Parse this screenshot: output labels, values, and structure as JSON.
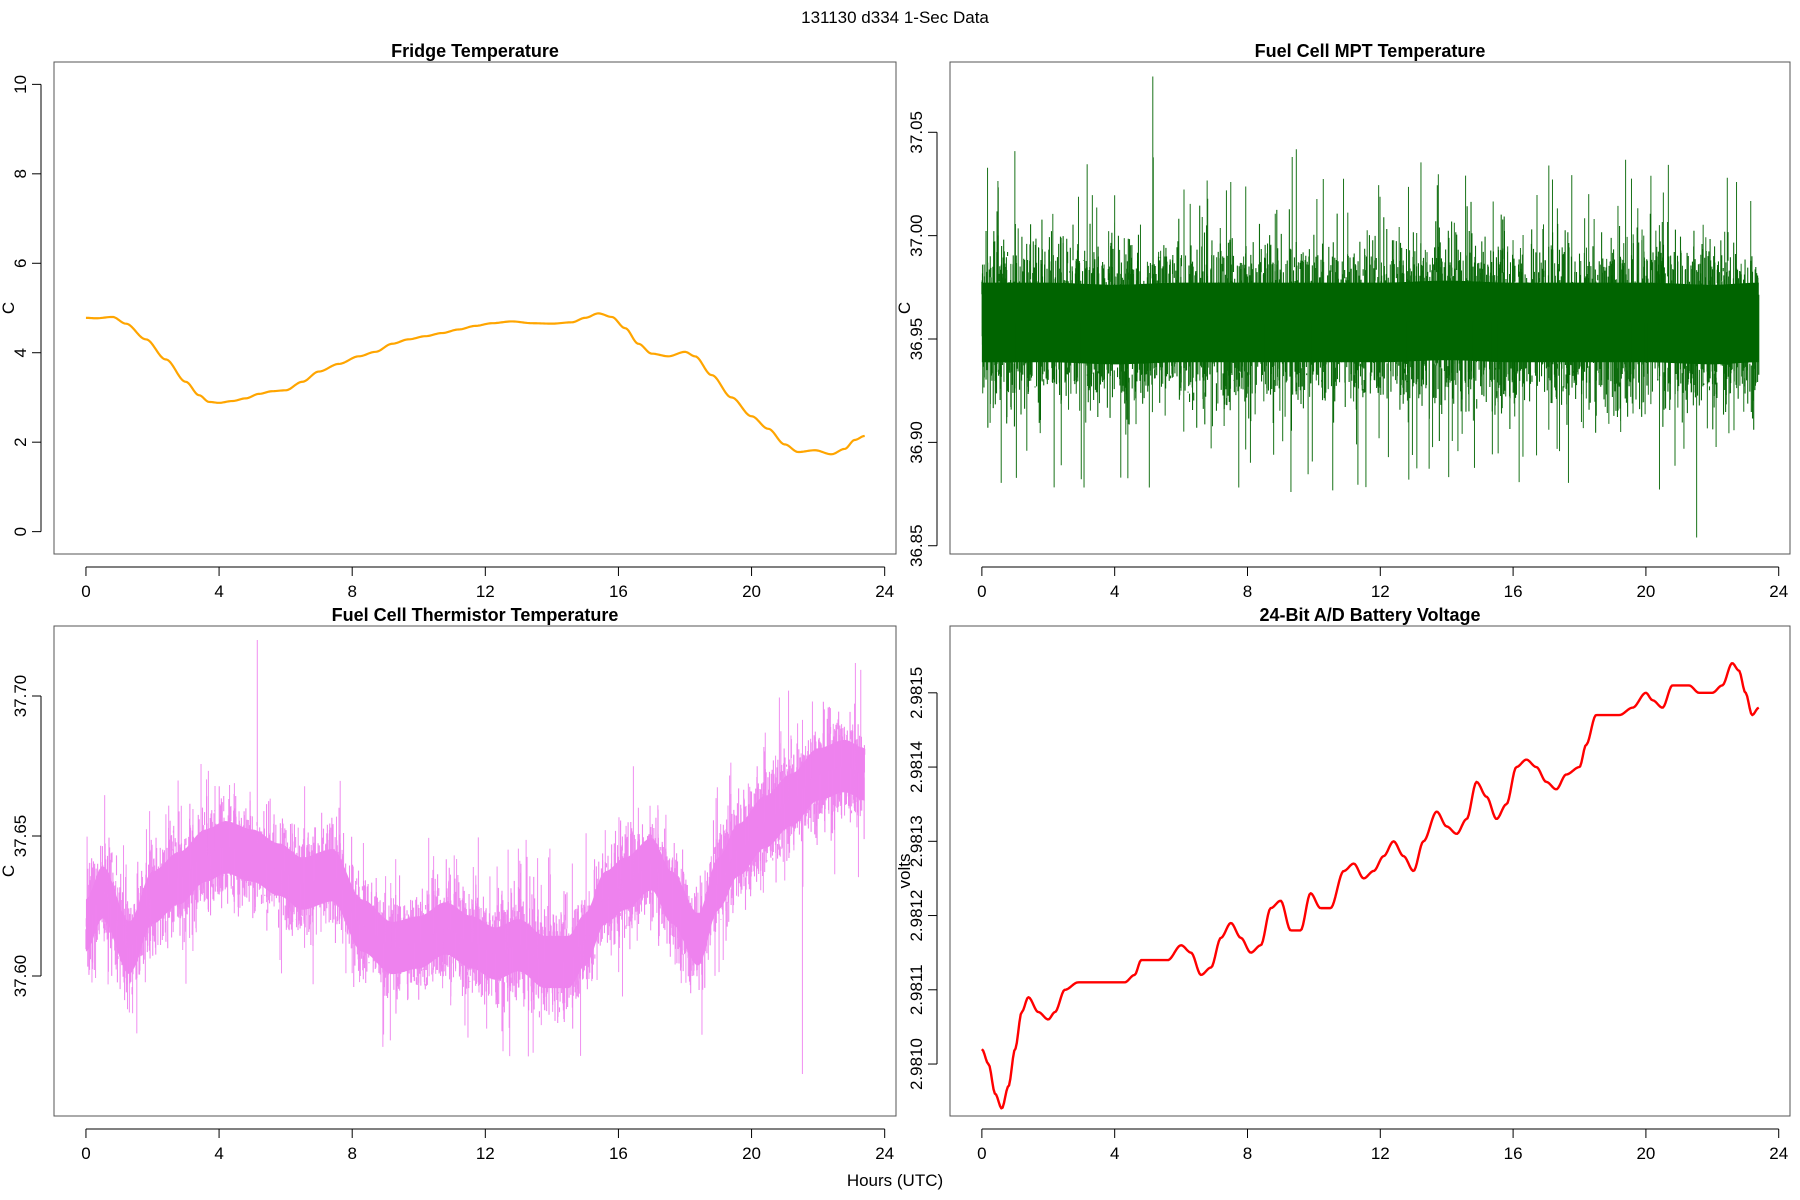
{
  "page_title": "131130   d334   1-Sec Data",
  "shared_xlabel": "Hours (UTC)",
  "chart_data": [
    {
      "id": "fridge",
      "type": "line",
      "title": "Fridge Temperature",
      "xlabel": "",
      "ylabel": "C",
      "xlim": [
        -0.96,
        24.34
      ],
      "ylim": [
        -0.5,
        10.5
      ],
      "xticks": [
        0,
        4,
        8,
        12,
        16,
        20,
        24
      ],
      "xtick_labels": [
        "0",
        "4",
        "8",
        "12",
        "16",
        "20",
        "24"
      ],
      "yticks": [
        0,
        2,
        4,
        6,
        8,
        10
      ],
      "ytick_labels": [
        "0",
        "2",
        "4",
        "6",
        "8",
        "10"
      ],
      "color": "#FFA500",
      "style": "smooth-line",
      "x": [
        0,
        0.3,
        0.8,
        1.2,
        1.8,
        2.4,
        3.0,
        3.4,
        3.7,
        4.0,
        4.4,
        4.8,
        5.2,
        5.6,
        6.0,
        6.5,
        7.0,
        7.6,
        8.2,
        8.7,
        9.2,
        9.7,
        10.2,
        10.7,
        11.2,
        11.7,
        12.2,
        12.8,
        13.4,
        14.0,
        14.6,
        15.0,
        15.4,
        15.8,
        16.2,
        16.6,
        17.0,
        17.5,
        18.0,
        18.3,
        18.8,
        19.4,
        20.0,
        20.5,
        21.0,
        21.4,
        21.9,
        22.4,
        22.8,
        23.1,
        23.4
      ],
      "y": [
        4.78,
        4.77,
        4.8,
        4.65,
        4.3,
        3.85,
        3.35,
        3.05,
        2.9,
        2.88,
        2.92,
        2.98,
        3.08,
        3.14,
        3.16,
        3.35,
        3.58,
        3.75,
        3.92,
        4.02,
        4.2,
        4.3,
        4.37,
        4.44,
        4.52,
        4.6,
        4.66,
        4.7,
        4.66,
        4.65,
        4.68,
        4.78,
        4.88,
        4.8,
        4.55,
        4.2,
        3.98,
        3.92,
        4.02,
        3.92,
        3.5,
        3.0,
        2.58,
        2.3,
        1.95,
        1.78,
        1.82,
        1.73,
        1.85,
        2.05,
        2.14
      ]
    },
    {
      "id": "mpt",
      "type": "line",
      "title": "Fuel Cell MPT Temperature",
      "xlabel": "",
      "ylabel": "C",
      "xlim": [
        -0.96,
        24.34
      ],
      "ylim": [
        36.846,
        37.084
      ],
      "xticks": [
        0,
        4,
        8,
        12,
        16,
        20,
        24
      ],
      "xtick_labels": [
        "0",
        "4",
        "8",
        "12",
        "16",
        "20",
        "24"
      ],
      "yticks": [
        36.85,
        36.9,
        36.95,
        37.0,
        37.05
      ],
      "ytick_labels": [
        "36.85",
        "36.90",
        "36.95",
        "37.00",
        "37.05"
      ],
      "color": "#006400",
      "style": "noisy",
      "x": [
        0,
        2,
        4,
        6,
        8,
        10,
        12,
        14,
        16,
        18,
        20,
        22,
        23.4
      ],
      "y": [
        36.958,
        36.958,
        36.957,
        36.958,
        36.958,
        36.958,
        36.958,
        36.959,
        36.958,
        36.958,
        36.958,
        36.957,
        36.958
      ],
      "noise_band": 0.035,
      "spike_max": 37.077,
      "spike_min": 36.854
    },
    {
      "id": "thermistor",
      "type": "line",
      "title": "Fuel Cell Thermistor Temperature",
      "xlabel": "",
      "ylabel": "C",
      "xlim": [
        -0.96,
        24.34
      ],
      "ylim": [
        37.55,
        37.725
      ],
      "xticks": [
        0,
        4,
        8,
        12,
        16,
        20,
        24
      ],
      "xtick_labels": [
        "0",
        "4",
        "8",
        "12",
        "16",
        "20",
        "24"
      ],
      "yticks": [
        37.6,
        37.65,
        37.7
      ],
      "ytick_labels": [
        "37.60",
        "37.65",
        "37.70"
      ],
      "color": "#EE82EE",
      "style": "noisy",
      "x": [
        0,
        0.5,
        1.3,
        2.0,
        2.8,
        3.6,
        4.2,
        5.0,
        5.8,
        6.5,
        7.4,
        8.3,
        9.2,
        10.0,
        10.8,
        11.6,
        12.3,
        13.0,
        13.8,
        14.5,
        15.0,
        15.6,
        16.2,
        17.0,
        17.6,
        18.4,
        19.0,
        19.6,
        20.4,
        21.2,
        22.0,
        22.8,
        23.4
      ],
      "y": [
        37.618,
        37.63,
        37.61,
        37.628,
        37.635,
        37.643,
        37.646,
        37.643,
        37.638,
        37.633,
        37.636,
        37.618,
        37.61,
        37.612,
        37.617,
        37.612,
        37.608,
        37.611,
        37.605,
        37.605,
        37.613,
        37.628,
        37.633,
        37.64,
        37.628,
        37.613,
        37.633,
        37.645,
        37.655,
        37.663,
        37.672,
        37.675,
        37.672
      ],
      "noise_band": 0.017,
      "spike_max": 37.72,
      "spike_min": 37.565
    },
    {
      "id": "battery",
      "type": "line",
      "title": "24-Bit A/D Battery Voltage",
      "xlabel": "",
      "ylabel": "volts",
      "xlim": [
        -0.96,
        24.34
      ],
      "ylim": [
        2.98093,
        2.98159
      ],
      "xticks": [
        0,
        4,
        8,
        12,
        16,
        20,
        24
      ],
      "xtick_labels": [
        "0",
        "4",
        "8",
        "12",
        "16",
        "20",
        "24"
      ],
      "yticks": [
        2.981,
        2.9811,
        2.9812,
        2.9813,
        2.9814,
        2.9815
      ],
      "ytick_labels": [
        "2.9810",
        "2.9811",
        "2.9812",
        "2.9813",
        "2.9814",
        "2.9815"
      ],
      "color": "#FF0000",
      "style": "smooth-line",
      "x": [
        0,
        0.2,
        0.4,
        0.6,
        0.8,
        1.0,
        1.2,
        1.4,
        1.7,
        2.0,
        2.2,
        2.5,
        2.9,
        3.4,
        3.9,
        4.3,
        4.6,
        4.8,
        5.2,
        5.6,
        6.0,
        6.3,
        6.6,
        6.9,
        7.2,
        7.5,
        7.8,
        8.1,
        8.4,
        8.7,
        9.0,
        9.3,
        9.6,
        9.9,
        10.2,
        10.5,
        10.9,
        11.2,
        11.5,
        11.8,
        12.1,
        12.4,
        12.7,
        13.0,
        13.3,
        13.7,
        14.0,
        14.3,
        14.6,
        14.9,
        15.2,
        15.5,
        15.8,
        16.1,
        16.4,
        16.7,
        17.0,
        17.3,
        17.6,
        18.0,
        18.2,
        18.5,
        18.8,
        19.2,
        19.6,
        20.0,
        20.2,
        20.5,
        20.8,
        21.0,
        21.3,
        21.6,
        22.0,
        22.3,
        22.6,
        22.8,
        23.0,
        23.2,
        23.4
      ],
      "y": [
        2.98102,
        2.981,
        2.98096,
        2.98094,
        2.98097,
        2.98102,
        2.98107,
        2.98109,
        2.98107,
        2.98106,
        2.98107,
        2.9811,
        2.98111,
        2.98111,
        2.98111,
        2.98111,
        2.98112,
        2.98114,
        2.98114,
        2.98114,
        2.98116,
        2.98115,
        2.98112,
        2.98113,
        2.98117,
        2.98119,
        2.98117,
        2.98115,
        2.98116,
        2.98121,
        2.98122,
        2.98118,
        2.98118,
        2.98123,
        2.98121,
        2.98121,
        2.98126,
        2.98127,
        2.98125,
        2.98126,
        2.98128,
        2.9813,
        2.98128,
        2.98126,
        2.9813,
        2.98134,
        2.98132,
        2.98131,
        2.98133,
        2.98138,
        2.98136,
        2.98133,
        2.98135,
        2.9814,
        2.98141,
        2.9814,
        2.98138,
        2.98137,
        2.98139,
        2.9814,
        2.98143,
        2.98147,
        2.98147,
        2.98147,
        2.98148,
        2.9815,
        2.98149,
        2.98148,
        2.98151,
        2.98151,
        2.98151,
        2.9815,
        2.9815,
        2.98151,
        2.98154,
        2.98153,
        2.9815,
        2.98147,
        2.98148
      ]
    }
  ]
}
